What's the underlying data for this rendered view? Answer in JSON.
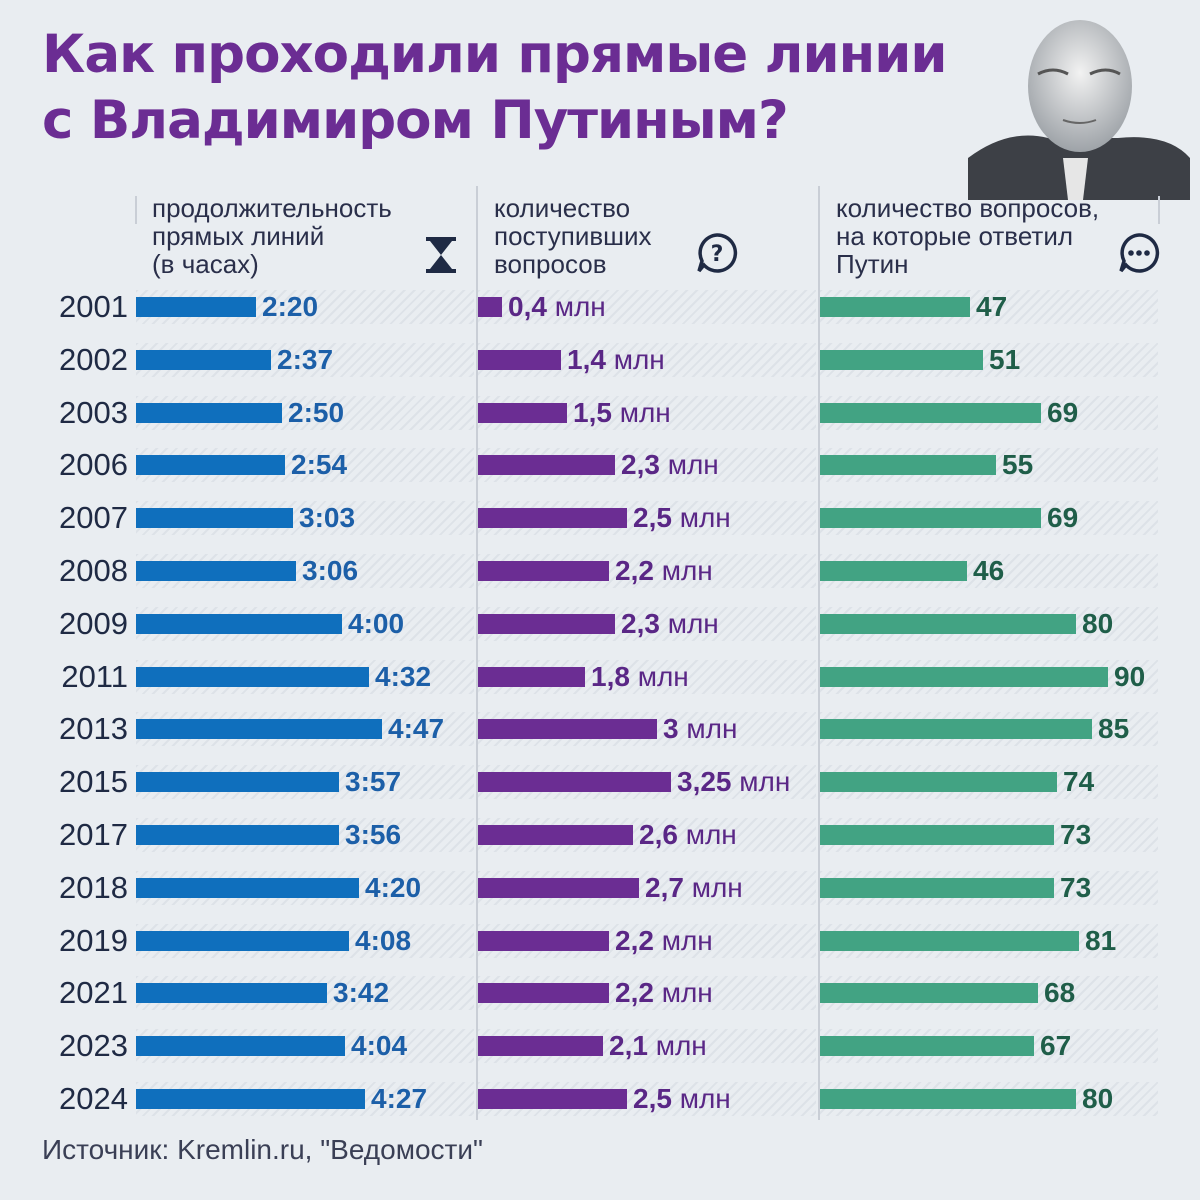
{
  "title": {
    "line1": "Как проходили прямые линии",
    "line2": "с Владимиром Путиным?"
  },
  "columns": {
    "duration": {
      "line1": "продолжительность",
      "line2": "прямых линий",
      "line3": "(в часах)",
      "icon": "hourglass-icon"
    },
    "received": {
      "line1": "количество",
      "line2": "поступивших",
      "line3": "вопросов",
      "icon": "question-icon"
    },
    "answered": {
      "line1": "количество вопросов,",
      "line2": "на которые ответил",
      "line3": "Путин",
      "icon": "chat-bubble-icon"
    }
  },
  "colors": {
    "title": "#6b2d93",
    "duration": "#0f6fbd",
    "received": "#6b2d93",
    "answered": "#42a383",
    "background": "#e9edf1"
  },
  "unit_million": "млн",
  "source": "Источник: Kremlin.ru, \"Ведомости\"",
  "chart_data": {
    "type": "bar",
    "categories": [
      "2001",
      "2002",
      "2003",
      "2006",
      "2007",
      "2008",
      "2009",
      "2011",
      "2013",
      "2015",
      "2017",
      "2018",
      "2019",
      "2021",
      "2023",
      "2024"
    ],
    "series": [
      {
        "name": "продолжительность прямых линий (в часах)",
        "values": [
          2.333,
          2.617,
          2.833,
          2.9,
          3.05,
          3.1,
          4.0,
          4.533,
          4.783,
          3.95,
          3.933,
          4.333,
          4.133,
          3.7,
          4.067,
          4.45
        ],
        "labels": [
          "2:20",
          "2:37",
          "2:50",
          "2:54",
          "3:03",
          "3:06",
          "4:00",
          "4:32",
          "4:47",
          "3:57",
          "3:56",
          "4:20",
          "4:08",
          "3:42",
          "4:04",
          "4:27"
        ]
      },
      {
        "name": "количество поступивших вопросов",
        "values": [
          0.4,
          1.4,
          1.5,
          2.3,
          2.5,
          2.2,
          2.3,
          1.8,
          3,
          3.25,
          2.6,
          2.7,
          2.2,
          2.2,
          2.1,
          2.5
        ],
        "labels": [
          "0,4",
          "1,4",
          "1,5",
          "2,3",
          "2,5",
          "2,2",
          "2,3",
          "1,8",
          "3",
          "3,25",
          "2,6",
          "2,7",
          "2,2",
          "2,2",
          "2,1",
          "2,5"
        ]
      },
      {
        "name": "количество вопросов, на которые ответил Путин",
        "values": [
          47,
          51,
          69,
          55,
          69,
          46,
          80,
          90,
          85,
          74,
          73,
          73,
          81,
          68,
          67,
          80
        ],
        "labels": [
          "47",
          "51",
          "69",
          "55",
          "69",
          "46",
          "80",
          "90",
          "85",
          "74",
          "73",
          "73",
          "81",
          "68",
          "67",
          "80"
        ]
      }
    ]
  }
}
